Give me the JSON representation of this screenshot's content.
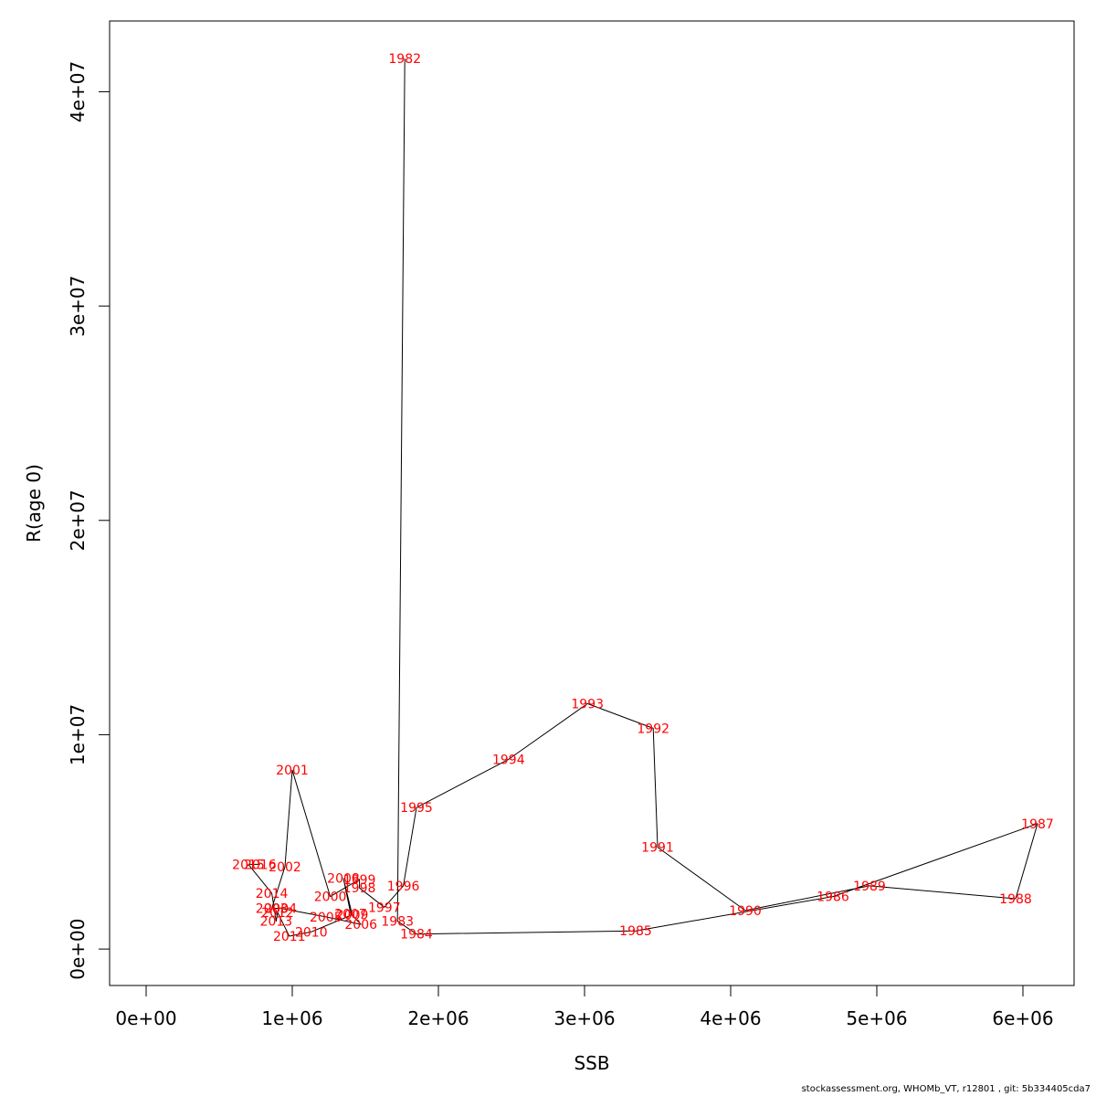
{
  "chart_data": {
    "type": "line",
    "xlabel": "SSB",
    "ylabel": "R(age 0)",
    "xlim": [
      -250000,
      6350000
    ],
    "ylim": [
      -1700000,
      43300000
    ],
    "x_ticks": [
      {
        "value": 0,
        "label": "0e+00"
      },
      {
        "value": 1000000,
        "label": "1e+06"
      },
      {
        "value": 2000000,
        "label": "2e+06"
      },
      {
        "value": 3000000,
        "label": "3e+06"
      },
      {
        "value": 4000000,
        "label": "4e+06"
      },
      {
        "value": 5000000,
        "label": "5e+06"
      },
      {
        "value": 6000000,
        "label": "6e+06"
      }
    ],
    "y_ticks": [
      {
        "value": 0,
        "label": "0e+00"
      },
      {
        "value": 10000000,
        "label": "1e+07"
      },
      {
        "value": 20000000,
        "label": "2e+07"
      },
      {
        "value": 30000000,
        "label": "3e+07"
      },
      {
        "value": 40000000,
        "label": "4e+07"
      }
    ],
    "grid": false,
    "line_color": "#000000",
    "label_color": "#ff0000",
    "points": [
      {
        "year": "1982",
        "x": 1770000,
        "y": 41550000
      },
      {
        "year": "1983",
        "x": 1720000,
        "y": 1300000
      },
      {
        "year": "1984",
        "x": 1850000,
        "y": 700000
      },
      {
        "year": "1985",
        "x": 3350000,
        "y": 850000
      },
      {
        "year": "1986",
        "x": 4700000,
        "y": 2450000
      },
      {
        "year": "1987",
        "x": 6100000,
        "y": 5850000
      },
      {
        "year": "1988",
        "x": 5950000,
        "y": 2350000
      },
      {
        "year": "1989",
        "x": 4950000,
        "y": 2950000
      },
      {
        "year": "1990",
        "x": 4100000,
        "y": 1800000
      },
      {
        "year": "1991",
        "x": 3500000,
        "y": 4750000
      },
      {
        "year": "1992",
        "x": 3470000,
        "y": 10300000
      },
      {
        "year": "1993",
        "x": 3020000,
        "y": 11450000
      },
      {
        "year": "1994",
        "x": 2480000,
        "y": 8850000
      },
      {
        "year": "1995",
        "x": 1850000,
        "y": 6600000
      },
      {
        "year": "1996",
        "x": 1760000,
        "y": 2950000
      },
      {
        "year": "1997",
        "x": 1630000,
        "y": 1950000
      },
      {
        "year": "1998",
        "x": 1460000,
        "y": 2850000
      },
      {
        "year": "1999",
        "x": 1460000,
        "y": 3250000
      },
      {
        "year": "2000",
        "x": 1260000,
        "y": 2450000
      },
      {
        "year": "2001",
        "x": 1000000,
        "y": 8350000
      },
      {
        "year": "2002",
        "x": 950000,
        "y": 3850000
      },
      {
        "year": "2003",
        "x": 860000,
        "y": 1900000
      },
      {
        "year": "2004",
        "x": 920000,
        "y": 1900000
      },
      {
        "year": "2005",
        "x": 1230000,
        "y": 1500000
      },
      {
        "year": "2006",
        "x": 1470000,
        "y": 1150000
      },
      {
        "year": "2007",
        "x": 1400000,
        "y": 1650000
      },
      {
        "year": "2008",
        "x": 1350000,
        "y": 3300000
      },
      {
        "year": "2009",
        "x": 1410000,
        "y": 1600000
      },
      {
        "year": "2010",
        "x": 1130000,
        "y": 800000
      },
      {
        "year": "2011",
        "x": 980000,
        "y": 600000
      },
      {
        "year": "2012",
        "x": 900000,
        "y": 1700000
      },
      {
        "year": "2013",
        "x": 890000,
        "y": 1300000
      },
      {
        "year": "2014",
        "x": 860000,
        "y": 2600000
      },
      {
        "year": "2015",
        "x": 700000,
        "y": 3950000
      },
      {
        "year": "2016",
        "x": 780000,
        "y": 3950000
      }
    ]
  },
  "footer": {
    "text": "stockassessment.org, WHOMb_VT, r12801 , git: 5b334405cda7"
  }
}
